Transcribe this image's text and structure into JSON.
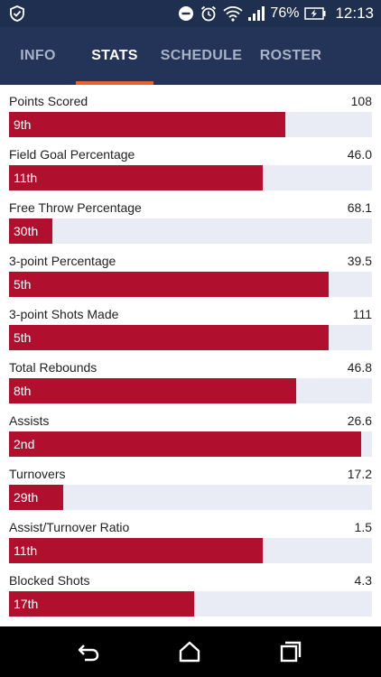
{
  "status_bar": {
    "battery": "76%",
    "time": "12:13"
  },
  "tabs": [
    {
      "label": "INFO",
      "active": false
    },
    {
      "label": "STATS",
      "active": true
    },
    {
      "label": "SCHEDULE",
      "active": false
    },
    {
      "label": "ROSTER",
      "active": false
    }
  ],
  "colors": {
    "header_bg": "#243358",
    "tab_indicator": "#e8622c",
    "bar_fill": "#b10f2e",
    "bar_track": "#e9ebf5"
  },
  "stats": [
    {
      "name": "Points Scored",
      "value": "108",
      "rank": "9th",
      "bar_fraction": 0.76
    },
    {
      "name": "Field Goal Percentage",
      "value": "46.0",
      "rank": "11th",
      "bar_fraction": 0.7
    },
    {
      "name": "Free Throw Percentage",
      "value": "68.1",
      "rank": "30th",
      "bar_fraction": 0.12
    },
    {
      "name": "3-point Percentage",
      "value": "39.5",
      "rank": "5th",
      "bar_fraction": 0.88
    },
    {
      "name": "3-point Shots Made",
      "value": "111",
      "rank": "5th",
      "bar_fraction": 0.88
    },
    {
      "name": "Total Rebounds",
      "value": "46.8",
      "rank": "8th",
      "bar_fraction": 0.79
    },
    {
      "name": "Assists",
      "value": "26.6",
      "rank": "2nd",
      "bar_fraction": 0.97
    },
    {
      "name": "Turnovers",
      "value": "17.2",
      "rank": "29th",
      "bar_fraction": 0.15
    },
    {
      "name": "Assist/Turnover Ratio",
      "value": "1.5",
      "rank": "11th",
      "bar_fraction": 0.7
    },
    {
      "name": "Blocked Shots",
      "value": "4.3",
      "rank": "17th",
      "bar_fraction": 0.51
    }
  ],
  "nav": {
    "back": "back-icon",
    "home": "home-icon",
    "recents": "recents-icon"
  }
}
